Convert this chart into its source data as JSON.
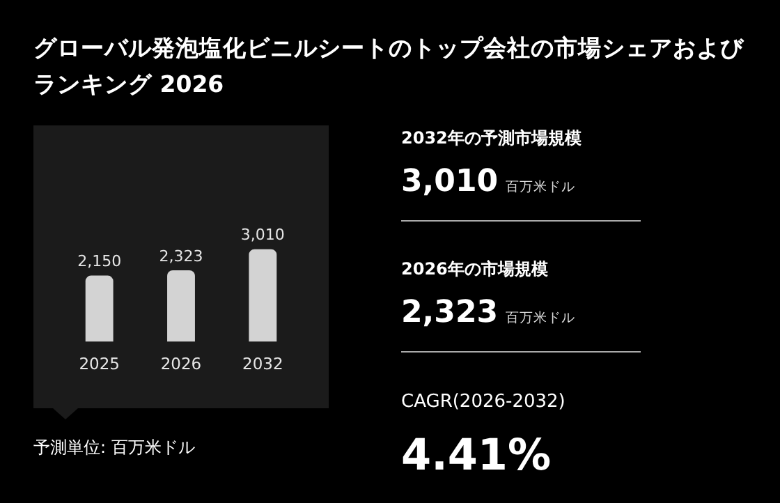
{
  "chart_data": [
    {
      "type": "bar",
      "title": "グローバル発泡塩化ビニルシートのトップ会社の市場シェアおよびランキング 2026",
      "categories": [
        "2025",
        "2026",
        "2032"
      ],
      "values": [
        2150,
        2323,
        3010
      ],
      "color": "#d3d3d3",
      "value_labels": [
        "2,150",
        "2,323",
        "3,010"
      ],
      "annotations": [
        "予測単位: 百万米ドル"
      ]
    },
    {
      "type": "other",
      "annotations": [
        "2032年の予測市場規模",
        "3,010",
        "百万米ドル",
        "2026年の市場規模",
        "2,323",
        "百万米ドル",
        "CAGR(2026-2032)",
        "4.41%"
      ]
    }
  ]
}
